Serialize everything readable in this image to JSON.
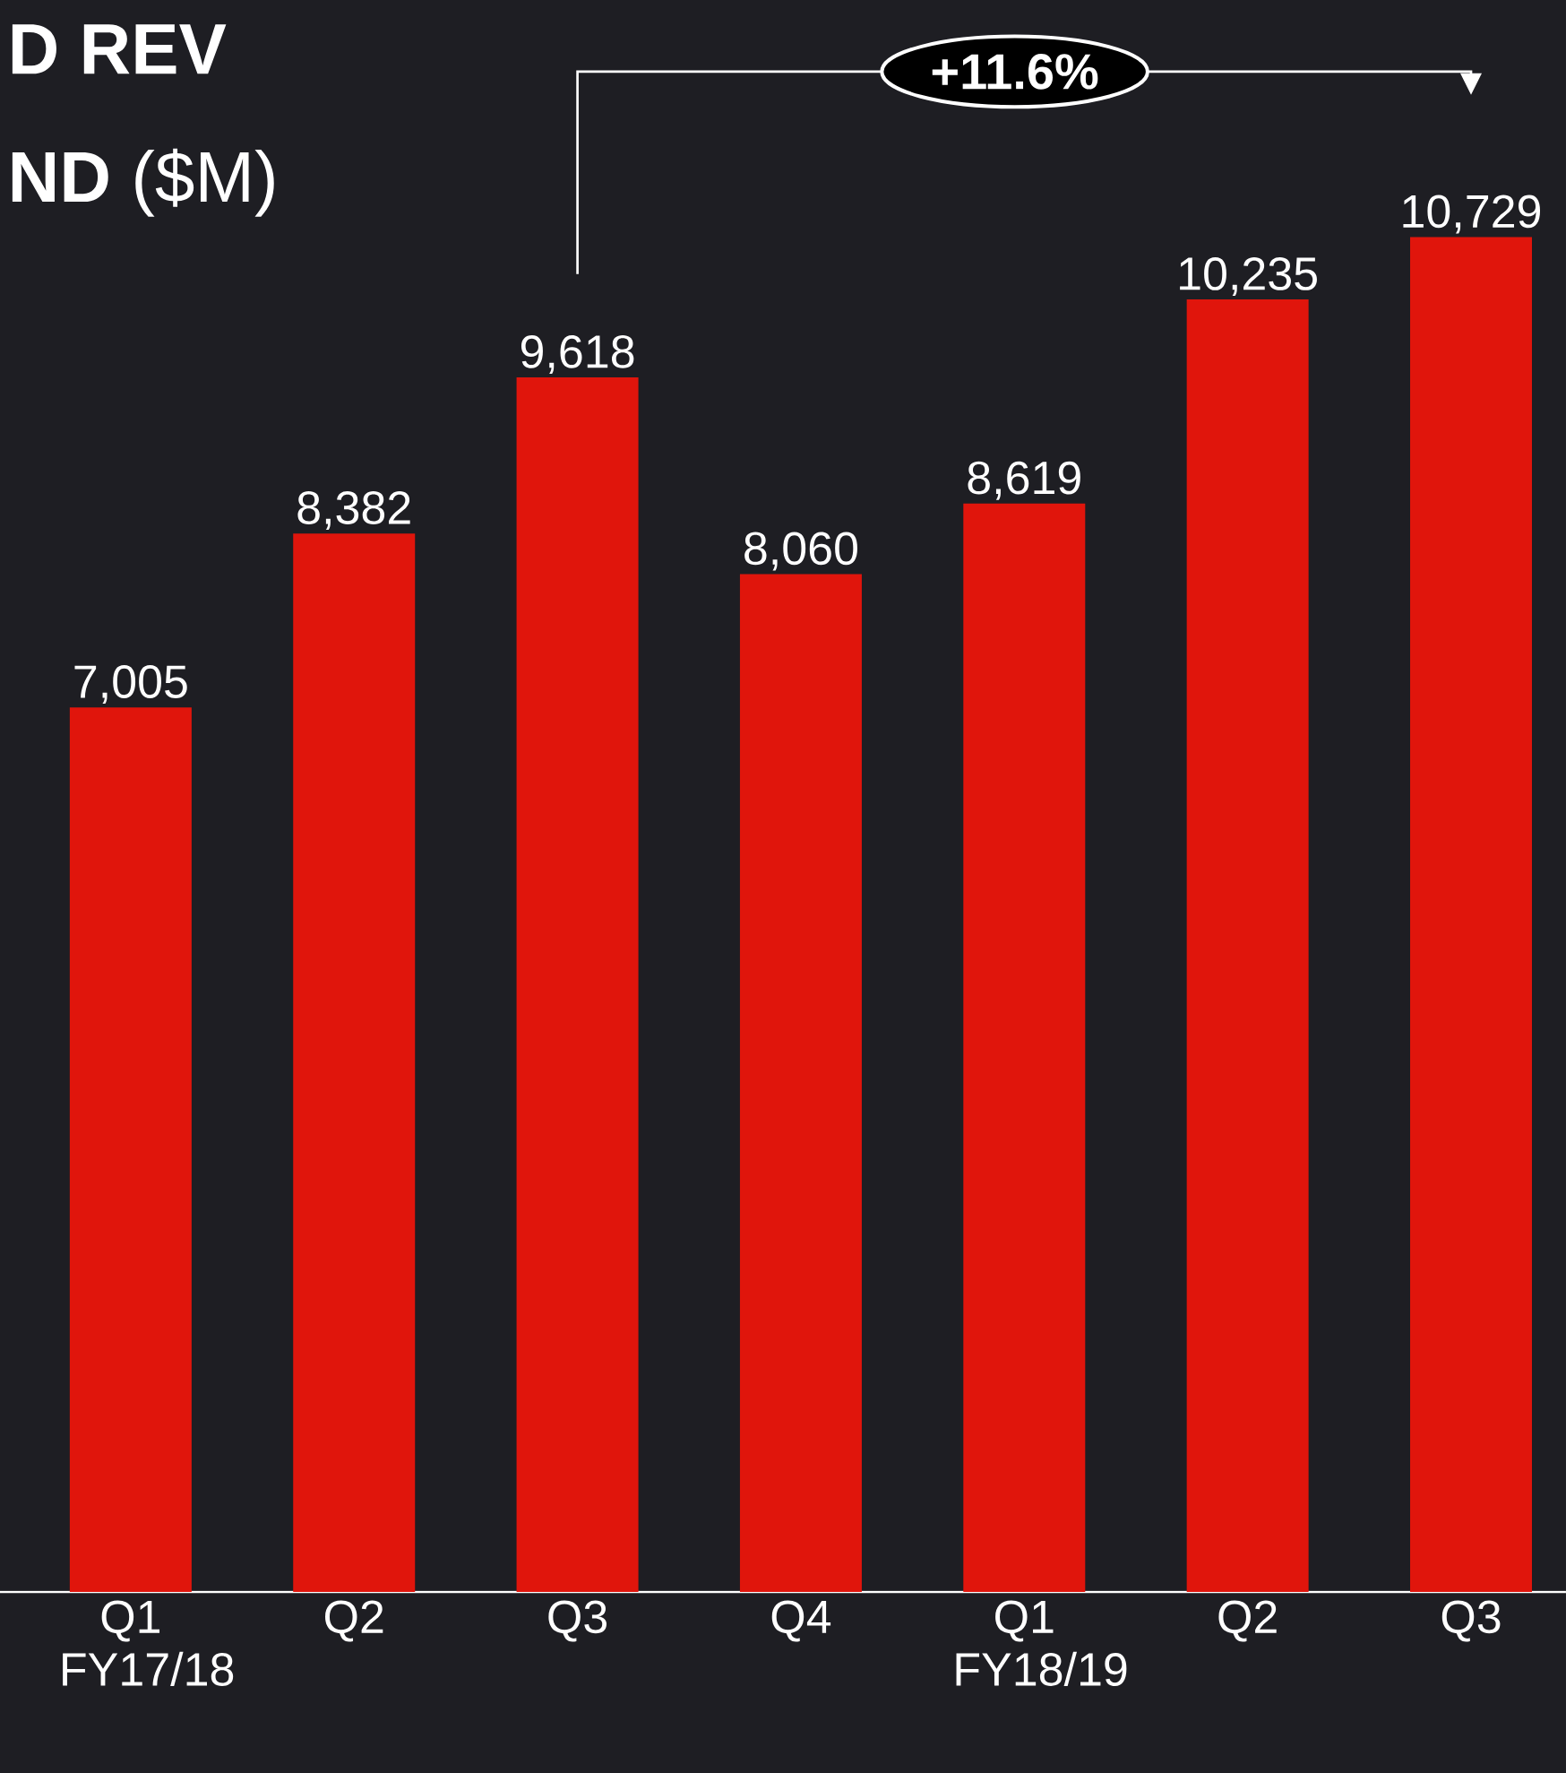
{
  "chart_data": {
    "type": "bar",
    "title": "D REV",
    "subtitle": "**ND** ($M)",
    "categories": [
      "Q1 FY17/18",
      "Q2",
      "Q3",
      "Q4",
      "Q1 FY18/19",
      "Q2",
      "Q3"
    ],
    "values": [
      7005,
      8382,
      9618,
      8060,
      8619,
      10235,
      10729
    ],
    "value_labels": [
      "7,005",
      "8,382",
      "9,618",
      "8,060",
      "8,619",
      "10,235",
      "10,729"
    ],
    "color": "#e0150c",
    "annotations": [
      "+11.6%"
    ]
  }
}
